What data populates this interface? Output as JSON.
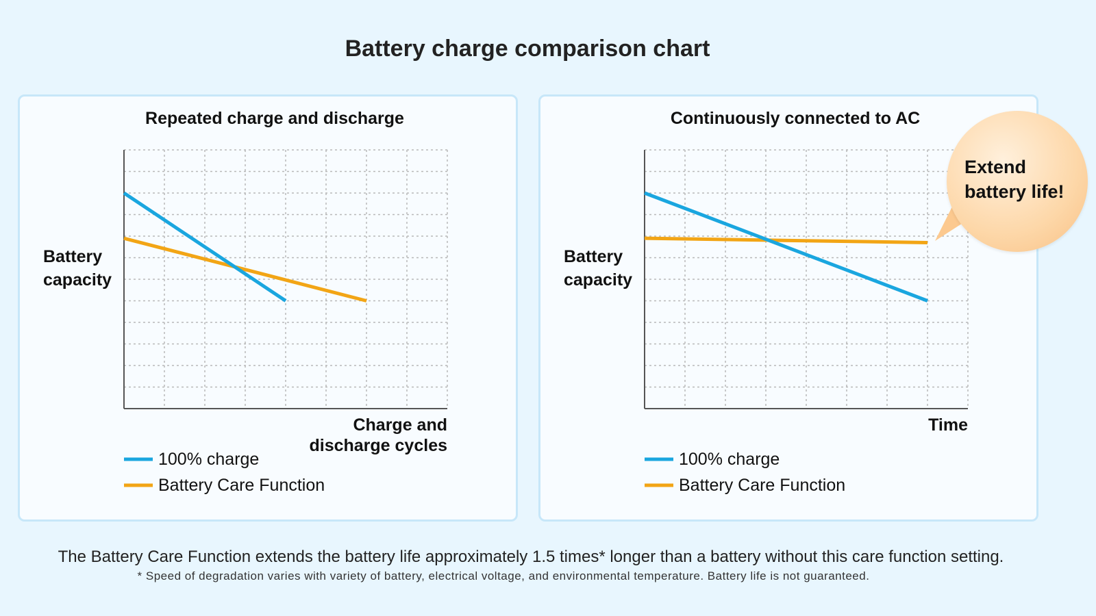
{
  "title": "Battery charge comparison chart",
  "colors": {
    "blue": "#1aa6df",
    "orange": "#f2a515",
    "grid": "#b8b8b8",
    "axis": "#555555"
  },
  "chart_data": [
    {
      "type": "line",
      "title": "Repeated charge and discharge",
      "ylabel": [
        "Battery",
        "capacity"
      ],
      "xlabel": [
        "Charge and",
        "discharge cycles"
      ],
      "xlim": [
        0,
        8
      ],
      "ylim": [
        0,
        12
      ],
      "grid": true,
      "series": [
        {
          "name": "100% charge",
          "color": "#1aa6df",
          "x": [
            0,
            4
          ],
          "y": [
            10,
            5
          ]
        },
        {
          "name": "Battery Care Function",
          "color": "#f2a515",
          "x": [
            0,
            6
          ],
          "y": [
            7.9,
            5
          ]
        }
      ]
    },
    {
      "type": "line",
      "title": "Continuously connected to AC",
      "ylabel": [
        "Battery",
        "capacity"
      ],
      "xlabel": [
        "Time"
      ],
      "xlim": [
        0,
        8
      ],
      "ylim": [
        0,
        12
      ],
      "grid": true,
      "series": [
        {
          "name": "100% charge",
          "color": "#1aa6df",
          "x": [
            0,
            7
          ],
          "y": [
            10,
            5
          ]
        },
        {
          "name": "Battery Care Function",
          "color": "#f2a515",
          "x": [
            0,
            7
          ],
          "y": [
            7.9,
            7.7
          ]
        }
      ]
    }
  ],
  "callout": {
    "lines": [
      "Extend",
      "battery life!"
    ]
  },
  "footer": {
    "main": "The Battery Care Function extends the battery life approximately 1.5 times* longer than a battery without this care function setting.",
    "note": "* Speed of degradation varies with variety of battery, electrical voltage, and environmental temperature. Battery life is not guaranteed."
  }
}
